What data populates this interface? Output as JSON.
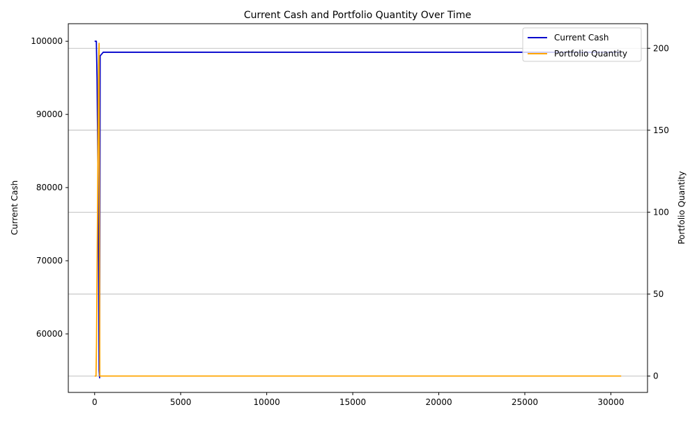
{
  "chart_data": {
    "type": "line",
    "title": "Current Cash and Portfolio Quantity Over Time",
    "xlabel": "",
    "ylabel_left": "Current Cash",
    "ylabel_right": "Portfolio Quantity",
    "xlim": [
      -1530,
      32130
    ],
    "ylim_left": [
      52000,
      102400
    ],
    "ylim_right": [
      -10,
      215
    ],
    "x_ticks": [
      0,
      5000,
      10000,
      15000,
      20000,
      25000,
      30000
    ],
    "x_tick_labels": [
      "0",
      "5000",
      "10000",
      "15000",
      "20000",
      "25000",
      "30000"
    ],
    "y_left_ticks": [
      60000,
      70000,
      80000,
      90000,
      100000
    ],
    "y_left_tick_labels": [
      "60000",
      "70000",
      "80000",
      "90000",
      "100000"
    ],
    "y_right_ticks": [
      0,
      50,
      100,
      150,
      200
    ],
    "y_right_tick_labels": [
      "0",
      "50",
      "100",
      "150",
      "200"
    ],
    "grid": "horizontal lines at right-axis ticks",
    "legend_position": "top-right",
    "series": [
      {
        "name": "Current Cash",
        "axis": "left",
        "color": "#0000cc",
        "x": [
          0,
          100,
          140,
          170,
          200,
          230,
          260,
          290,
          320,
          500,
          30600
        ],
        "y": [
          100000,
          100000,
          95000,
          88000,
          80000,
          70000,
          55000,
          54000,
          98000,
          98500,
          98500
        ]
      },
      {
        "name": "Portfolio Quantity",
        "axis": "right",
        "color": "#ffa500",
        "x": [
          0,
          80,
          110,
          140,
          170,
          200,
          230,
          260,
          300,
          600,
          30600
        ],
        "y": [
          0,
          0,
          20,
          60,
          100,
          150,
          190,
          203,
          0,
          0,
          0
        ]
      }
    ]
  }
}
